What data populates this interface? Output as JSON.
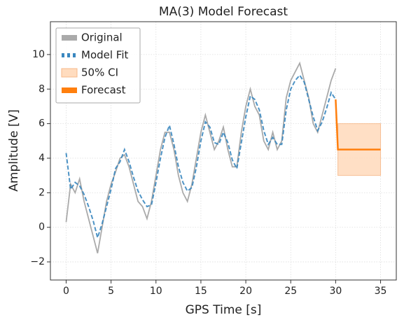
{
  "chart_data": {
    "type": "line",
    "title": "MA(3) Model Forecast",
    "x_label": "GPS Time [s]",
    "y_label": "Amplitude [V]",
    "x": [
      0,
      0.5,
      1,
      1.5,
      2,
      2.5,
      3,
      3.5,
      4,
      4.5,
      5,
      5.5,
      6,
      6.5,
      7,
      7.5,
      8,
      8.5,
      9,
      9.5,
      10,
      10.5,
      11,
      11.5,
      12,
      12.5,
      13,
      13.5,
      14,
      14.5,
      15,
      15.5,
      16,
      16.5,
      17,
      17.5,
      18,
      18.5,
      19,
      19.5,
      20,
      20.5,
      21,
      21.5,
      22,
      22.5,
      23,
      23.5,
      24,
      24.5,
      25,
      25.5,
      26,
      26.5,
      27,
      27.5,
      28,
      28.5,
      29,
      29.5,
      30
    ],
    "series": [
      {
        "name": "Original",
        "color": "#aaaaaa",
        "style": "solid",
        "values": [
          0.3,
          2.5,
          2,
          2.8,
          1.5,
          0.5,
          -0.5,
          -1.5,
          0,
          1.5,
          2.5,
          3.2,
          4,
          4.2,
          3.5,
          2.5,
          1.5,
          1.2,
          0.5,
          1.5,
          3,
          4.5,
          5.5,
          5.5,
          4.5,
          3,
          2,
          1.5,
          2.5,
          4,
          5.5,
          6.5,
          5.5,
          4.5,
          5,
          5.8,
          4.5,
          3.5,
          3.5,
          5.5,
          7,
          8,
          7,
          6.5,
          5,
          4.5,
          5.5,
          4.5,
          5,
          7.5,
          8.5,
          9,
          9.5,
          8.5,
          7.5,
          6,
          5.5,
          6.5,
          7.5,
          8.5,
          9.2
        ]
      },
      {
        "name": "Model Fit",
        "color": "#3a87bf",
        "style": "dashed",
        "values": [
          4.3,
          2.2,
          2.6,
          2.4,
          1.9,
          1.2,
          0.4,
          -0.6,
          0.2,
          1.2,
          2.2,
          3.4,
          3.8,
          4.5,
          3.8,
          2.9,
          2.1,
          1.6,
          1.2,
          1.3,
          2.6,
          4,
          5.2,
          5.9,
          4.8,
          3.5,
          2.6,
          2.1,
          2.3,
          3.5,
          5,
          6.1,
          5.8,
          4.9,
          4.8,
          5.5,
          4.9,
          3.9,
          3.4,
          4.9,
          6.4,
          7.6,
          7.4,
          6.8,
          5.6,
          4.8,
          5.2,
          4.8,
          4.8,
          6.8,
          8,
          8.5,
          8.8,
          8.4,
          7.4,
          6.4,
          5.6,
          6.1,
          6.9,
          7.8,
          7.4
        ]
      },
      {
        "name": "50% CI",
        "color": "#ffdcbf",
        "edge": "#f7b98a",
        "kind": "band",
        "x": [
          30.25,
          35
        ],
        "lower": [
          3,
          3
        ],
        "upper": [
          6,
          6
        ]
      },
      {
        "name": "Forecast",
        "color": "#ff7f0e",
        "style": "solid",
        "x": [
          30,
          30.25,
          35
        ],
        "values": [
          7.4,
          4.5,
          4.5
        ]
      }
    ],
    "xlim": [
      -1.75,
      36.75
    ],
    "xticks": [
      0,
      5,
      10,
      15,
      20,
      25,
      30,
      35
    ],
    "ylim": [
      -3.05,
      11.9
    ],
    "yticks": [
      {
        "value": -2,
        "label": "−2"
      },
      0,
      2,
      4,
      6,
      8,
      10
    ],
    "grid": true,
    "legend": "upper left"
  }
}
